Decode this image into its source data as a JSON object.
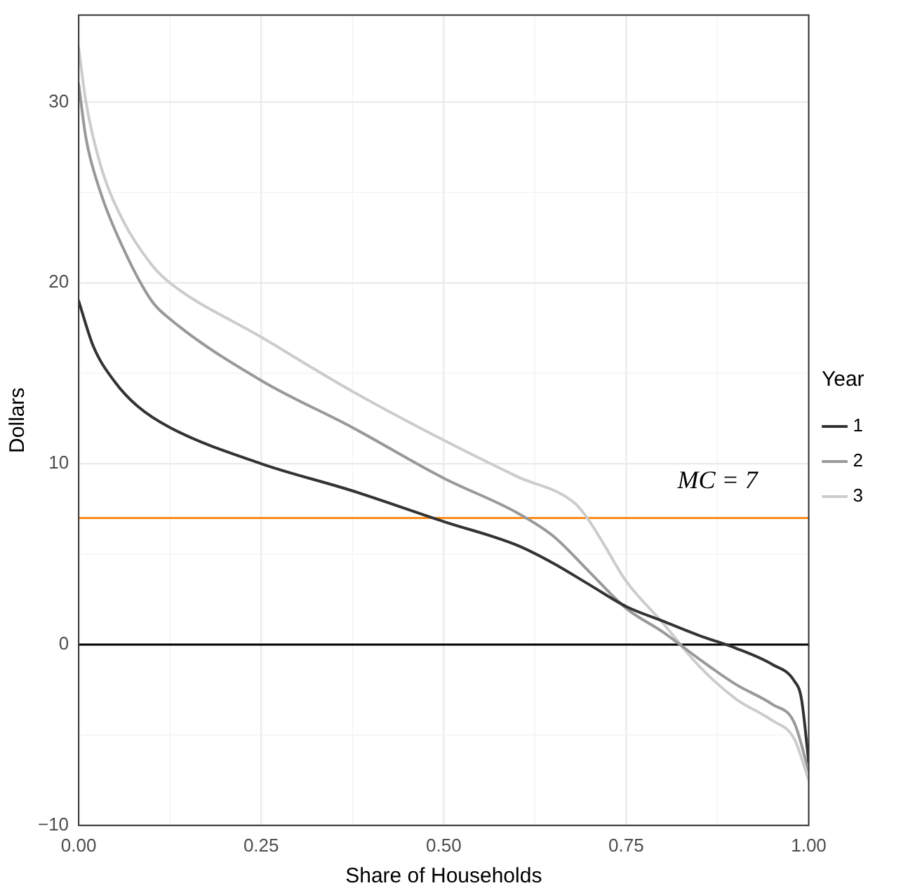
{
  "chart_data": {
    "type": "line",
    "xlabel": "Share of Households",
    "ylabel": "Dollars",
    "legend_title": "Year",
    "legend": "right",
    "grid": true,
    "marker": "none",
    "line_style": "solid",
    "xlim": [
      0,
      1
    ],
    "xticks": [
      {
        "value": 0,
        "label": "0.00"
      },
      {
        "value": 0.25,
        "label": "0.25"
      },
      {
        "value": 0.5,
        "label": "0.50"
      },
      {
        "value": 0.75,
        "label": "0.75"
      },
      {
        "value": 1,
        "label": "1.00"
      }
    ],
    "ylim": [
      -10,
      34.8
    ],
    "yticks": [
      {
        "value": -10,
        "label": "−10"
      },
      0,
      10,
      20,
      30
    ],
    "ref_lines": [
      {
        "axis": "y",
        "value": 7,
        "label": "MC = 7",
        "color": "#ff8c1a"
      },
      {
        "axis": "y",
        "value": 0,
        "color": "#000000"
      }
    ],
    "series": [
      {
        "name": "1",
        "color": "#333333",
        "x": [
          0,
          0.02,
          0.05,
          0.08,
          0.125,
          0.25,
          0.375,
          0.5,
          0.6,
          0.65,
          0.7,
          0.75,
          0.8,
          0.85,
          0.9,
          0.95,
          0.98,
          0.99,
          1
        ],
        "values": [
          19,
          16.5,
          14.5,
          13.2,
          12,
          10,
          8.5,
          6.8,
          5.5,
          4.5,
          3.3,
          2.1,
          1.3,
          0.5,
          -0.2,
          -1.1,
          -2,
          -3,
          -6.5
        ]
      },
      {
        "name": "2",
        "color": "#999999",
        "x": [
          0,
          0.01,
          0.03,
          0.06,
          0.1,
          0.125,
          0.25,
          0.375,
          0.5,
          0.6,
          0.65,
          0.7,
          0.75,
          0.8,
          0.85,
          0.9,
          0.95,
          0.98,
          1
        ],
        "values": [
          31,
          28,
          25,
          22,
          19,
          18,
          14.6,
          12,
          9.2,
          7.3,
          6,
          4,
          2,
          0.7,
          -0.8,
          -2.2,
          -3.3,
          -4.3,
          -7
        ]
      },
      {
        "name": "3",
        "color": "#cccccc",
        "x": [
          0,
          0.01,
          0.03,
          0.06,
          0.1,
          0.125,
          0.25,
          0.375,
          0.5,
          0.6,
          0.68,
          0.7,
          0.72,
          0.75,
          0.8,
          0.85,
          0.9,
          0.95,
          0.98,
          1
        ],
        "values": [
          33,
          30,
          26.5,
          23.5,
          21,
          20,
          17,
          14,
          11.3,
          9.3,
          7.8,
          6.8,
          5.5,
          3.5,
          1.2,
          -1.2,
          -3,
          -4.2,
          -5.2,
          -7.5
        ]
      }
    ]
  }
}
